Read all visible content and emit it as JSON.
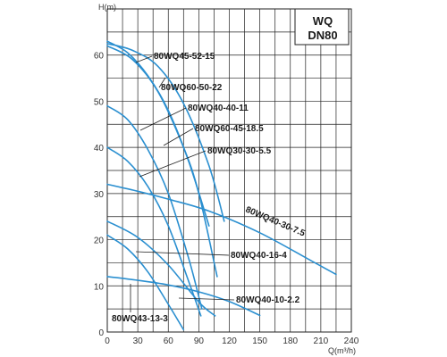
{
  "chart_data": {
    "type": "line",
    "title": "WQ",
    "subtitle": "DN80",
    "xlabel": "Q(m³/h)",
    "ylabel": "H(m)",
    "xlim": [
      0,
      240
    ],
    "ylim": [
      0,
      70
    ],
    "x_ticks": [
      0,
      30,
      60,
      90,
      120,
      150,
      180,
      210,
      240
    ],
    "y_ticks": [
      0,
      10,
      20,
      30,
      40,
      50,
      60
    ],
    "grid": true,
    "series": [
      {
        "name": "80WQ45-52-15",
        "x": [
          0,
          20,
          40,
          60,
          80,
          100
        ],
        "y": [
          63,
          60.5,
          55.5,
          48,
          37,
          23
        ]
      },
      {
        "name": "80WQ60-50-22",
        "x": [
          0,
          25,
          50,
          75,
          100,
          115
        ],
        "y": [
          62.5,
          61,
          57.5,
          49.5,
          36,
          24
        ]
      },
      {
        "name": "80WQ40-40-11",
        "x": [
          0,
          20,
          40,
          60,
          80,
          93
        ],
        "y": [
          49,
          46,
          39.5,
          30,
          16,
          5
        ]
      },
      {
        "name": "80WQ60-45-18.5",
        "x": [
          0,
          25,
          50,
          75,
          90,
          108
        ],
        "y": [
          62,
          59,
          52,
          40,
          30,
          12
        ]
      },
      {
        "name": "80WQ30-30-5.5",
        "x": [
          0,
          20,
          40,
          60,
          80,
          92
        ],
        "y": [
          40,
          37,
          31.5,
          23,
          11,
          3.5
        ]
      },
      {
        "name": "80WQ40-30-7.5",
        "x": [
          0,
          30,
          60,
          100,
          150,
          200,
          225
        ],
        "y": [
          32,
          30.5,
          28.8,
          26.2,
          21.5,
          15.5,
          12.5
        ]
      },
      {
        "name": "80WQ40-16-4",
        "x": [
          0,
          30,
          60,
          90,
          106
        ],
        "y": [
          24,
          20.5,
          14.5,
          6.5,
          3.5
        ]
      },
      {
        "name": "80WQ40-10-2.2",
        "x": [
          0,
          30,
          60,
          90,
          120,
          150
        ],
        "y": [
          12,
          11.2,
          10.2,
          8.7,
          6.6,
          3.6
        ]
      },
      {
        "name": "80WQ43-13-3",
        "x": [
          0,
          20,
          40,
          60,
          75
        ],
        "y": [
          21,
          18,
          13,
          6,
          0.5
        ]
      }
    ],
    "annotations": [
      {
        "text": "80WQ45-52-15"
      },
      {
        "text": "80WQ60-50-22"
      },
      {
        "text": "80WQ40-40-11"
      },
      {
        "text": "80WQ60-45-18.5"
      },
      {
        "text": "80WQ30-30-5.5"
      },
      {
        "text": "80WQ40-30-7.5"
      },
      {
        "text": "80WQ40-16-4"
      },
      {
        "text": "80WQ40-10-2.2"
      },
      {
        "text": "80WQ43-13-3"
      }
    ],
    "colors": {
      "curve": "#2a8fd0",
      "grid": "#222222",
      "leader": "#222222"
    }
  }
}
